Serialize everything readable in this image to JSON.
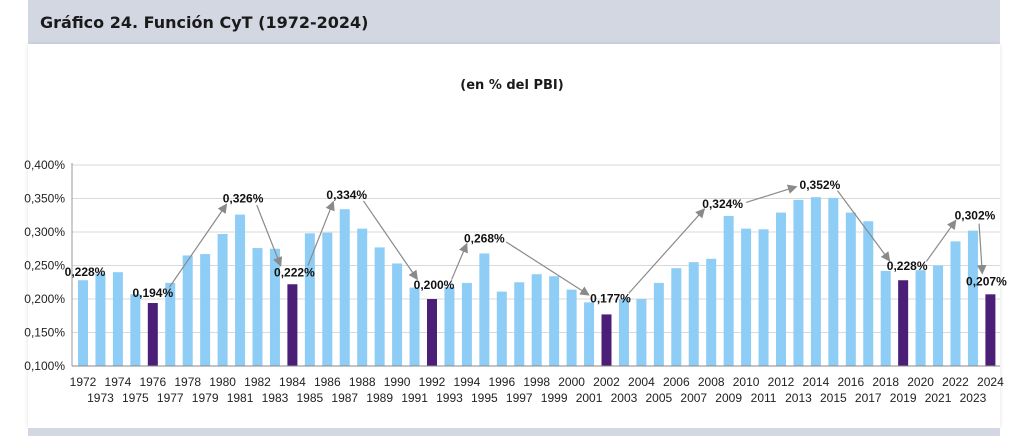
{
  "header": {
    "title": "Gráfico 24. Función CyT (1972-2024)"
  },
  "chart_data": {
    "type": "bar",
    "subtitle": "(en % del PBI)",
    "ylim": [
      0.1,
      0.4
    ],
    "y_ticks": [
      "0,100%",
      "0,150%",
      "0,200%",
      "0,250%",
      "0,300%",
      "0,350%",
      "0,400%"
    ],
    "grid": true,
    "colors": {
      "normal": "#8ecdf5",
      "highlight": "#4b1e78",
      "arrow": "#8a8a8a",
      "grid": "#d9d9d9"
    },
    "categories": [
      "1972",
      "1973",
      "1974",
      "1975",
      "1976",
      "1977",
      "1978",
      "1979",
      "1980",
      "1981",
      "1982",
      "1983",
      "1984",
      "1985",
      "1986",
      "1987",
      "1988",
      "1989",
      "1990",
      "1991",
      "1992",
      "1993",
      "1994",
      "1995",
      "1996",
      "1997",
      "1998",
      "1999",
      "2000",
      "2001",
      "2002",
      "2003",
      "2004",
      "2005",
      "2006",
      "2007",
      "2008",
      "2009",
      "2010",
      "2011",
      "2012",
      "2013",
      "2014",
      "2015",
      "2016",
      "2017",
      "2018",
      "2019",
      "2020",
      "2021",
      "2022",
      "2023",
      "2024"
    ],
    "values": [
      0.228,
      0.238,
      0.24,
      0.207,
      0.194,
      0.224,
      0.265,
      0.267,
      0.297,
      0.326,
      0.276,
      0.275,
      0.222,
      0.298,
      0.299,
      0.334,
      0.305,
      0.277,
      0.253,
      0.217,
      0.2,
      0.218,
      0.224,
      0.268,
      0.211,
      0.225,
      0.237,
      0.234,
      0.214,
      0.195,
      0.177,
      0.2,
      0.2,
      0.224,
      0.246,
      0.255,
      0.26,
      0.324,
      0.305,
      0.304,
      0.329,
      0.348,
      0.352,
      0.351,
      0.329,
      0.316,
      0.242,
      0.228,
      0.243,
      0.25,
      0.286,
      0.302,
      0.207
    ],
    "highlighted": [
      "1976",
      "1984",
      "1992",
      "2002",
      "2019",
      "2024"
    ],
    "annotations": [
      {
        "year": "1972",
        "label": "0,228%"
      },
      {
        "year": "1976",
        "label": "0,194%"
      },
      {
        "year": "1981",
        "label": "0,326%"
      },
      {
        "year": "1984",
        "label": "0,222%"
      },
      {
        "year": "1987",
        "label": "0,334%"
      },
      {
        "year": "1992",
        "label": "0,200%"
      },
      {
        "year": "1995",
        "label": "0,268%"
      },
      {
        "year": "2002",
        "label": "0,177%"
      },
      {
        "year": "2009",
        "label": "0,324%"
      },
      {
        "year": "2014",
        "label": "0,352%"
      },
      {
        "year": "2019",
        "label": "0,228%"
      },
      {
        "year": "2023",
        "label": "0,302%"
      },
      {
        "year": "2024",
        "label": "0,207%"
      }
    ],
    "arrows": [
      [
        "1976",
        "1981"
      ],
      [
        "1981",
        "1984"
      ],
      [
        "1984",
        "1987"
      ],
      [
        "1987",
        "1992"
      ],
      [
        "1992",
        "1995"
      ],
      [
        "1995",
        "2002"
      ],
      [
        "2002",
        "2009"
      ],
      [
        "2009",
        "2014"
      ],
      [
        "2014",
        "2019"
      ],
      [
        "2019",
        "2023"
      ],
      [
        "2023",
        "2024"
      ]
    ]
  }
}
